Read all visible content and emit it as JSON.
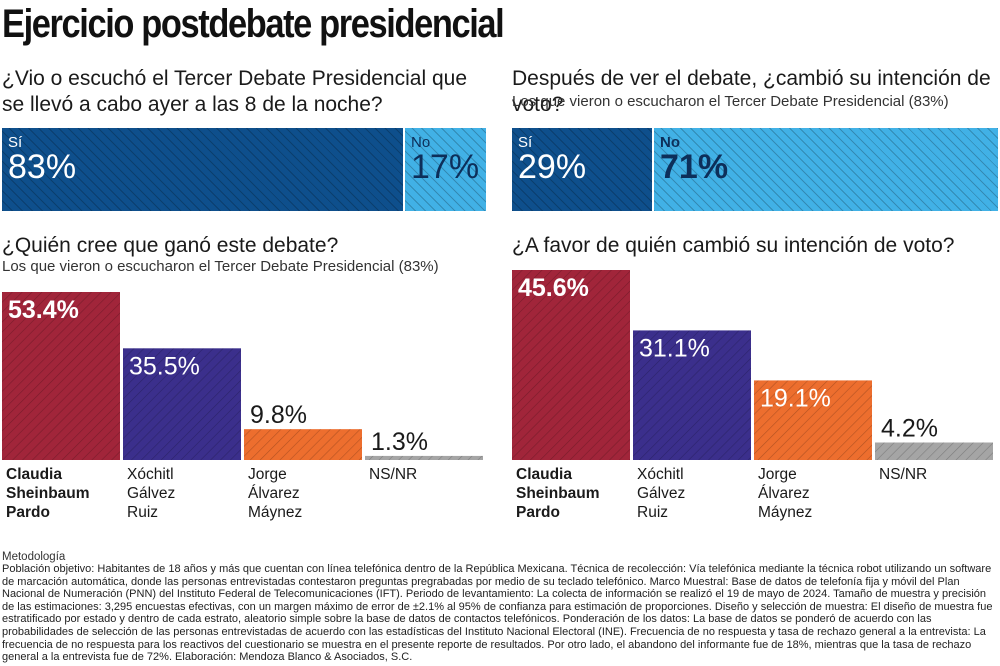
{
  "title": "Ejercicio postdebate presidencial",
  "colors": {
    "dark_blue": "#0e4f8c",
    "light_blue": "#41b1e6",
    "red": "#a1253a",
    "purple": "#3b2f8c",
    "orange": "#ed6e2e",
    "gray": "#a5a5a5"
  },
  "chart_data": [
    {
      "type": "bar",
      "orientation": "horizontal-stacked",
      "title": "¿Vio o escuchó el Tercer Debate Presidencial que se llevó a cabo ayer a las 8 de la noche?",
      "subtitle": "",
      "categories": [
        "Sí",
        "No"
      ],
      "values": [
        83,
        17
      ],
      "value_labels": [
        "83%",
        "17%"
      ]
    },
    {
      "type": "bar",
      "orientation": "horizontal-stacked",
      "title": "Después de ver el debate, ¿cambió su intención de voto?",
      "subtitle": "Los que vieron o escucharon el Tercer Debate Presidencial (83%)",
      "categories": [
        "Sí",
        "No"
      ],
      "values": [
        29,
        71
      ],
      "value_labels": [
        "29%",
        "71%"
      ]
    },
    {
      "type": "bar",
      "title": "¿Quién cree que ganó este debate?",
      "subtitle": "Los que vieron o escucharon el Tercer Debate Presidencial (83%)",
      "categories": [
        [
          "Claudia",
          "Sheinbaum",
          "Pardo"
        ],
        [
          "Xóchitl",
          "Gálvez",
          "Ruiz"
        ],
        [
          "Jorge",
          "Álvarez",
          "Máynez"
        ],
        [
          "NS/NR"
        ]
      ],
      "values": [
        53.4,
        35.5,
        9.8,
        1.3
      ],
      "value_labels": [
        "53.4%",
        "35.5%",
        "9.8%",
        "1.3%"
      ],
      "ylim": [
        0,
        53.4
      ]
    },
    {
      "type": "bar",
      "title": "¿A favor de quién cambió su intención de voto?",
      "subtitle": "",
      "categories": [
        [
          "Claudia",
          "Sheinbaum",
          "Pardo"
        ],
        [
          "Xóchitl",
          "Gálvez",
          "Ruiz"
        ],
        [
          "Jorge",
          "Álvarez",
          "Máynez"
        ],
        [
          "NS/NR"
        ]
      ],
      "values": [
        45.6,
        31.1,
        19.1,
        4.2
      ],
      "value_labels": [
        "45.6%",
        "31.1%",
        "19.1%",
        "4.2%"
      ],
      "ylim": [
        0,
        45.6
      ]
    }
  ],
  "methodology": {
    "title": "Metodología",
    "text": "Población objetivo: Habitantes de 18 años y más que cuentan con línea telefónica dentro de la República Mexicana. Técnica de recolección: Vía telefónica mediante la técnica robot utilizando un software de marcación automática, donde las personas entrevistadas contestaron preguntas pregrabadas por medio de su teclado telefónico. Marco Muestral: Base de datos de telefonía fija y móvil del Plan Nacional de Numeración (PNN) del Instituto Federal de Telecomunicaciones (IFT). Periodo de levantamiento: La colecta de información se realizó el 19 de mayo de 2024. Tamaño de muestra y precisión de las estimaciones: 3,295 encuestas efectivas, con un margen máximo de error de ±2.1% al 95% de confianza para estimación de proporciones. Diseño y selección de muestra: El diseño de muestra fue estratificado por estado y dentro de cada estrato, aleatorio simple sobre la base de datos de contactos telefónicos. Ponderación de los datos: La base de datos se ponderó de acuerdo con las probabilidades de selección de las personas entrevistadas de acuerdo con las estadísticas del Instituto Nacional Electoral (INE). Frecuencia de no respuesta y tasa de rechazo general a la entrevista: La frecuencia de no respuesta para los reactivos del cuestionario se muestra en el presente reporte de resultados. Por otro lado, el abandono del informante fue de 18%, mientras que la tasa de rechazo general a la entrevista fue de 72%. Elaboración: Mendoza Blanco & Asociados, S.C."
  }
}
